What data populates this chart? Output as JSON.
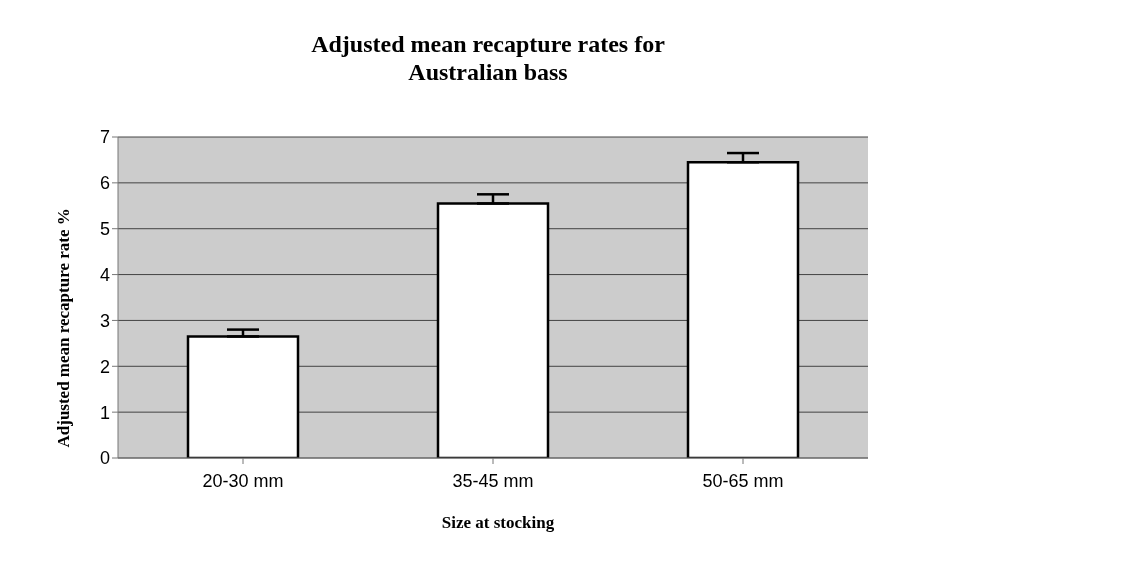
{
  "chart_data": {
    "type": "bar",
    "title": "Adjusted mean recapture rates for\nAustralian bass",
    "xlabel": "Size at stocking",
    "ylabel": "Adjusted mean recapture rate %",
    "categories": [
      "20-30 mm",
      "35-45 mm",
      "50-65 mm"
    ],
    "values": [
      2.65,
      5.55,
      6.45
    ],
    "errors": [
      [
        2.65,
        2.8
      ],
      [
        5.55,
        5.75
      ],
      [
        6.45,
        6.65
      ]
    ],
    "color": "#ffffff",
    "ylim": [
      0,
      7
    ],
    "yticks": [
      0,
      1,
      2,
      3,
      4,
      5,
      6,
      7
    ],
    "grid": "y"
  }
}
